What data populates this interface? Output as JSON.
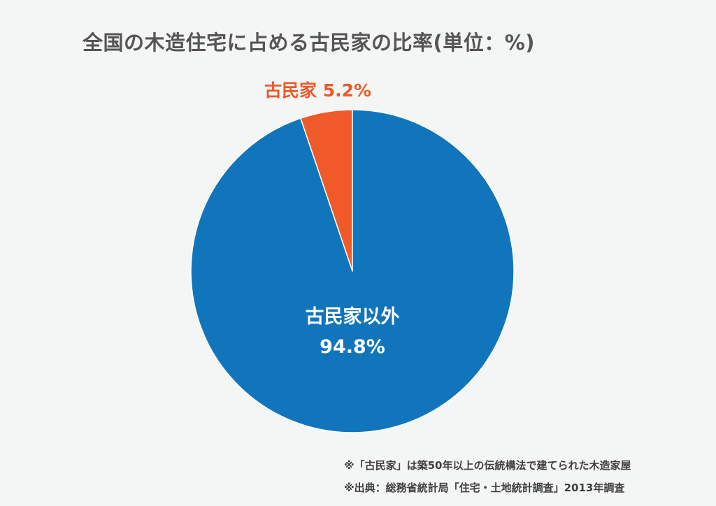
{
  "chart_data": {
    "type": "pie",
    "title": "全国の木造住宅に占める古民家の比率(単位：%)",
    "slices": [
      {
        "label": "古民家",
        "value": 5.2,
        "value_label": "5.2%",
        "color": "#f05a28"
      },
      {
        "label": "古民家以外",
        "value": 94.8,
        "value_label": "94.8%",
        "color": "#1175bc"
      }
    ]
  },
  "notes": [
    "※「古民家」は築50年以上の伝統構法で建てられた木造家屋",
    "※出典：総務省統計局「住宅・土地統計調査」2013年調査"
  ]
}
